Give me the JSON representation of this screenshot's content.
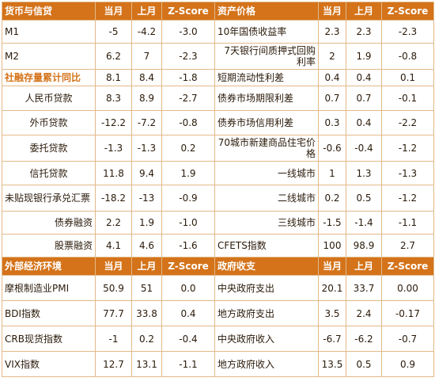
{
  "top": {
    "headers": [
      "货币与信贷",
      "当月",
      "上月",
      "Z-Score",
      "资产价格",
      "当月",
      "上月",
      "Z-Score"
    ],
    "rows": [
      {
        "l": [
          "M1",
          "-5",
          "-4.2",
          "-3.0"
        ],
        "r": [
          "10年国债收益率",
          "2.3",
          "2.3",
          "-2.3"
        ]
      },
      {
        "l": [
          "M2",
          "6.2",
          "7",
          "-2.3"
        ],
        "r": [
          "7天银行间质押式回购利率",
          "2",
          "1.9",
          "-0.8"
        ]
      },
      {
        "l": [
          "社融存量累计同比",
          "8.1",
          "8.4",
          "-1.8"
        ],
        "r": [
          "短期流动性利差",
          "0.4",
          "0.4",
          "0.1"
        ]
      },
      {
        "l": [
          "人民币贷款",
          "8.3",
          "8.9",
          "-2.7"
        ],
        "r": [
          "债券市场期限利差",
          "0.7",
          "0.7",
          "-0.1"
        ]
      },
      {
        "l": [
          "外币贷款",
          "-12.2",
          "-7.2",
          "-0.8"
        ],
        "r": [
          "债券市场信用利差",
          "0.3",
          "0.4",
          "-2.2"
        ]
      },
      {
        "l": [
          "委托贷款",
          "-1.3",
          "-1.3",
          "0.2"
        ],
        "r": [
          "70城市新建商品住宅价格",
          "-0.6",
          "-0.4",
          "-1.2"
        ]
      },
      {
        "l": [
          "信托贷款",
          "11.8",
          "9.4",
          "1.9"
        ],
        "r": [
          "一线城市",
          "1",
          "1.3",
          "-1.3"
        ]
      },
      {
        "l": [
          "未贴现银行承兑汇票",
          "-18.2",
          "-13",
          "-0.9"
        ],
        "r": [
          "二线城市",
          "0.2",
          "0.5",
          "-1.2"
        ]
      },
      {
        "l": [
          "债券融资",
          "2.2",
          "1.9",
          "-1.0"
        ],
        "r": [
          "三线城市",
          "-1.5",
          "-1.4",
          "-1.1"
        ]
      },
      {
        "l": [
          "股票融资",
          "4.1",
          "4.6",
          "-1.6"
        ],
        "r": [
          "CFETS指数",
          "100",
          "98.9",
          "2.7"
        ]
      }
    ]
  },
  "bottom": {
    "headers": [
      "外部经济环境",
      "当月",
      "上月",
      "Z-Score",
      "政府收支",
      "当月",
      "上月",
      "Z-Score"
    ],
    "rows": [
      {
        "l": [
          "摩根制造业PMI",
          "50.9",
          "51",
          "0.0"
        ],
        "r": [
          "中央政府支出",
          "20.1",
          "33.7",
          "0.00"
        ]
      },
      {
        "l": [
          "BDI指数",
          "77.7",
          "33.8",
          "0.4"
        ],
        "r": [
          "地方政府支出",
          "3.5",
          "2.4",
          "-0.17"
        ]
      },
      {
        "l": [
          "CRB现货指数",
          "-1",
          "0.2",
          "-0.4"
        ],
        "r": [
          "中央政府收入",
          "-6.7",
          "-6.2",
          "-0.7"
        ]
      },
      {
        "l": [
          "VIX指数",
          "12.7",
          "13.1",
          "-1.1"
        ],
        "r": [
          "地方政府收入",
          "13.5",
          "0.5",
          "0.9"
        ]
      }
    ]
  },
  "colors": {
    "header_bg": "#d4731a",
    "border": "#e3b98a",
    "highlight_text": "#d4731a"
  }
}
